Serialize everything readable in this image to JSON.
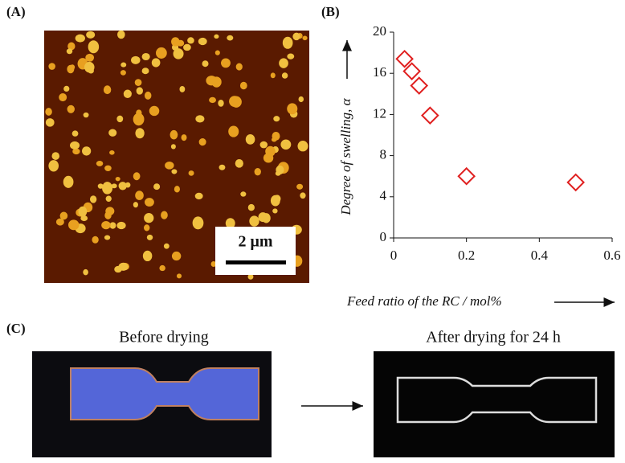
{
  "panels": {
    "a": "(A)",
    "b": "(B)",
    "c": "(C)"
  },
  "scale_bar": "2 μm",
  "photos": {
    "before": "Before drying",
    "after": "After drying for 24 h"
  },
  "chart_data": {
    "type": "scatter",
    "xlabel": "Feed ratio of the RC / mol%",
    "ylabel": "Degree of swelling, α",
    "x": [
      0.03,
      0.05,
      0.07,
      0.1,
      0.2,
      0.5
    ],
    "values": [
      17.4,
      16.2,
      14.8,
      11.9,
      6.0,
      5.4
    ],
    "color": "#e02020",
    "xlim": [
      0,
      0.6
    ],
    "xticks": [
      0,
      0.2,
      0.4,
      0.6
    ],
    "ylim": [
      0,
      20
    ],
    "yticks": [
      0,
      4,
      8,
      12,
      16,
      20
    ]
  }
}
